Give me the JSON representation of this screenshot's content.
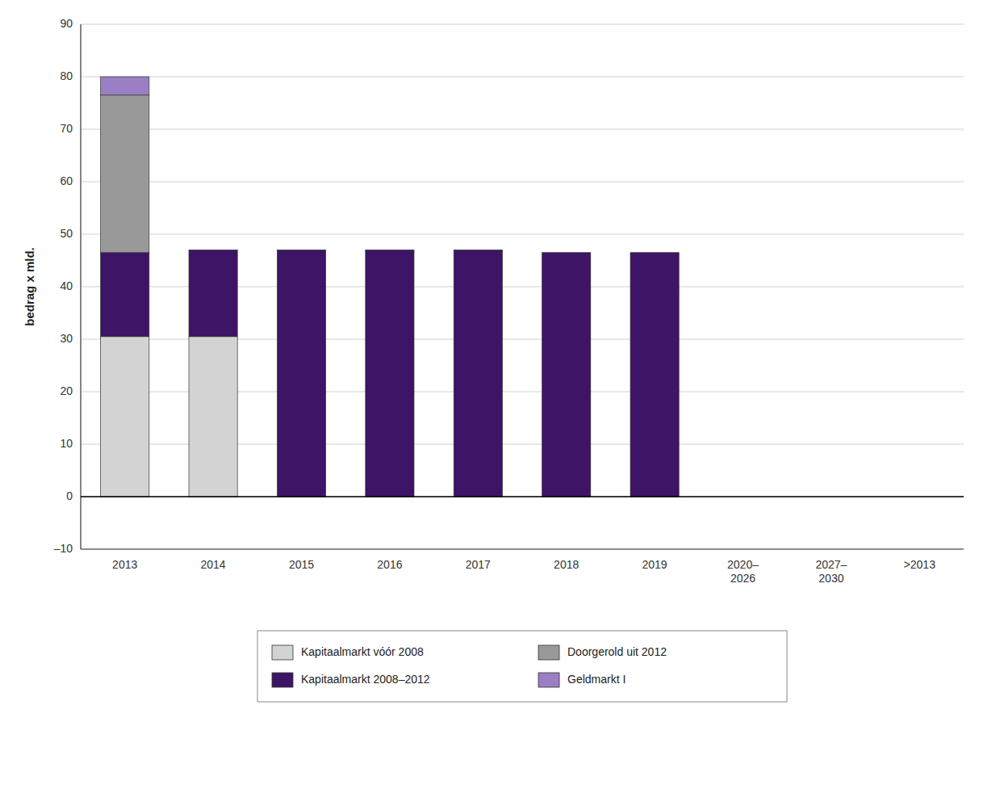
{
  "chart_data": {
    "type": "bar",
    "stacked": true,
    "categories": [
      "2013",
      "2014",
      "2015",
      "2016",
      "2017",
      "2018",
      "2019",
      "2020–\n2026",
      "2027–\n2030",
      ">2013"
    ],
    "series": [
      {
        "name": "Kapitaalmarkt vóór 2008",
        "color": "#d3d3d3",
        "values": [
          30.5,
          30.5,
          0,
          0,
          0,
          0,
          0,
          0,
          0,
          0
        ]
      },
      {
        "name": "Kapitaalmarkt 2008–2012",
        "color": "#3d1466",
        "values": [
          16.0,
          16.5,
          47.0,
          47.0,
          47.0,
          46.5,
          46.5,
          0,
          0,
          0
        ]
      },
      {
        "name": "Doorgerold uit 2012",
        "color": "#999999",
        "values": [
          30.0,
          0,
          0,
          0,
          0,
          0,
          0,
          0,
          0,
          0
        ]
      },
      {
        "name": "Geldmarkt I",
        "color": "#9b7fc4",
        "values": [
          3.5,
          0,
          0,
          0,
          0,
          0,
          0,
          0,
          0,
          0
        ]
      }
    ],
    "y_label": "bedrag x mld.",
    "ylim": [
      -10,
      90
    ],
    "yticks": [
      {
        "value": -10,
        "label": "–10"
      },
      0,
      10,
      20,
      30,
      40,
      50,
      60,
      70,
      80,
      90
    ],
    "grid": true,
    "legend": "bottom"
  }
}
